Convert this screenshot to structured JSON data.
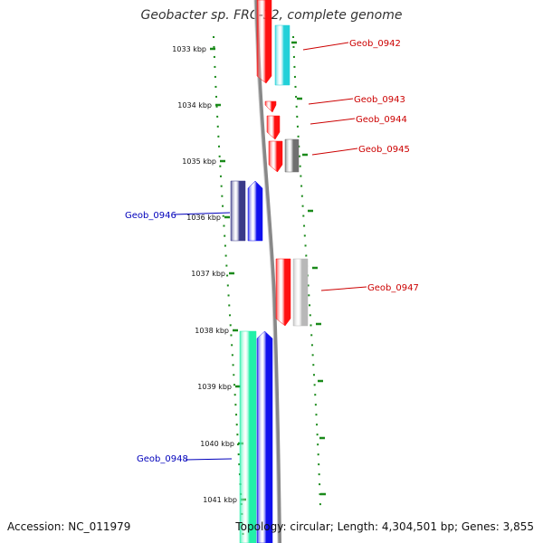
{
  "title": "Geobacter sp. FRC-32, complete genome",
  "accession": "Accession: NC_011979",
  "topology": "Topology: circular; Length: 4,304,501 bp; Genes: 3,855",
  "colors": {
    "backbone": "#888888",
    "tick": "#1a8a1a",
    "label_red": "#cc0000",
    "label_blue": "#0000bb",
    "gene_red": "#ff1010",
    "gene_cyan": "#22d0d8",
    "gene_blue": "#1010ee",
    "gene_navy": "#3a3a88",
    "gene_gray": "#707070",
    "gene_lightgray": "#b8b8b8",
    "gene_teal": "#22f0a8"
  },
  "ruler": [
    {
      "label": "1033 kbp"
    },
    {
      "label": "1034 kbp"
    },
    {
      "label": "1035 kbp"
    },
    {
      "label": "1036 kbp"
    },
    {
      "label": "1037 kbp"
    },
    {
      "label": "1038 kbp"
    },
    {
      "label": "1039 kbp"
    },
    {
      "label": "1040 kbp"
    },
    {
      "label": "1041 kbp"
    }
  ],
  "gene_labels": [
    {
      "id": "g0942",
      "text": "Geob_0942",
      "color": "red"
    },
    {
      "id": "g0943",
      "text": "Geob_0943",
      "color": "red"
    },
    {
      "id": "g0944",
      "text": "Geob_0944",
      "color": "red"
    },
    {
      "id": "g0945",
      "text": "Geob_0945",
      "color": "red"
    },
    {
      "id": "g0946",
      "text": "Geob_0946",
      "color": "blue"
    },
    {
      "id": "g0947",
      "text": "Geob_0947",
      "color": "red"
    },
    {
      "id": "g0948",
      "text": "Geob_0948",
      "color": "blue"
    }
  ]
}
